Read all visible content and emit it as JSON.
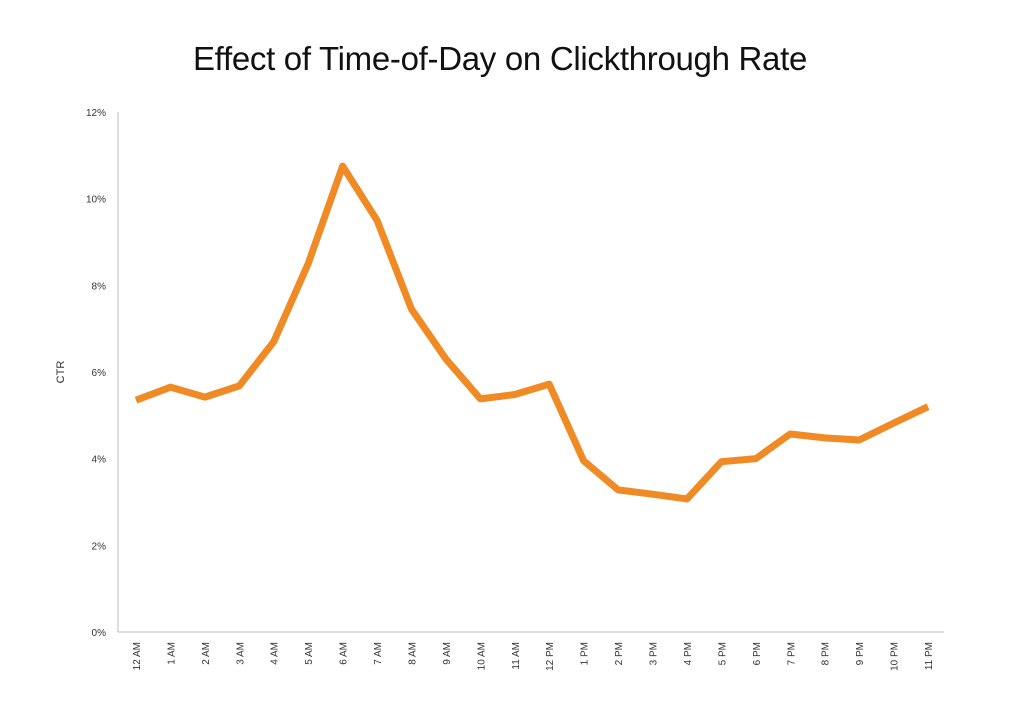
{
  "chart_data": {
    "type": "line",
    "title": "Effect of Time-of-Day on Clickthrough Rate",
    "xlabel": "",
    "ylabel": "CTR",
    "categories": [
      "12 AM",
      "1 AM",
      "2 AM",
      "3 AM",
      "4 AM",
      "5 AM",
      "6 AM",
      "7 AM",
      "8 AM",
      "9 AM",
      "10 AM",
      "11 AM",
      "12 PM",
      "1 PM",
      "2 PM",
      "3 PM",
      "4 PM",
      "5 PM",
      "6 PM",
      "7 PM",
      "8 PM",
      "9 PM",
      "10 PM",
      "11 PM"
    ],
    "series": [
      {
        "values": [
          5.35,
          5.65,
          5.42,
          5.68,
          6.7,
          8.5,
          10.75,
          9.5,
          7.45,
          6.3,
          5.38,
          5.48,
          5.72,
          3.95,
          3.28,
          3.18,
          3.07,
          3.93,
          4.0,
          4.57,
          4.48,
          4.43,
          4.82,
          5.2
        ],
        "color": "#F08A24"
      }
    ],
    "ylim": [
      0,
      12
    ],
    "yticks": [
      0,
      2,
      4,
      6,
      8,
      10,
      12
    ],
    "ytick_labels": [
      "0%",
      "2%",
      "4%",
      "6%",
      "8%",
      "10%",
      "12%"
    ],
    "grid": false,
    "legend": "none"
  }
}
